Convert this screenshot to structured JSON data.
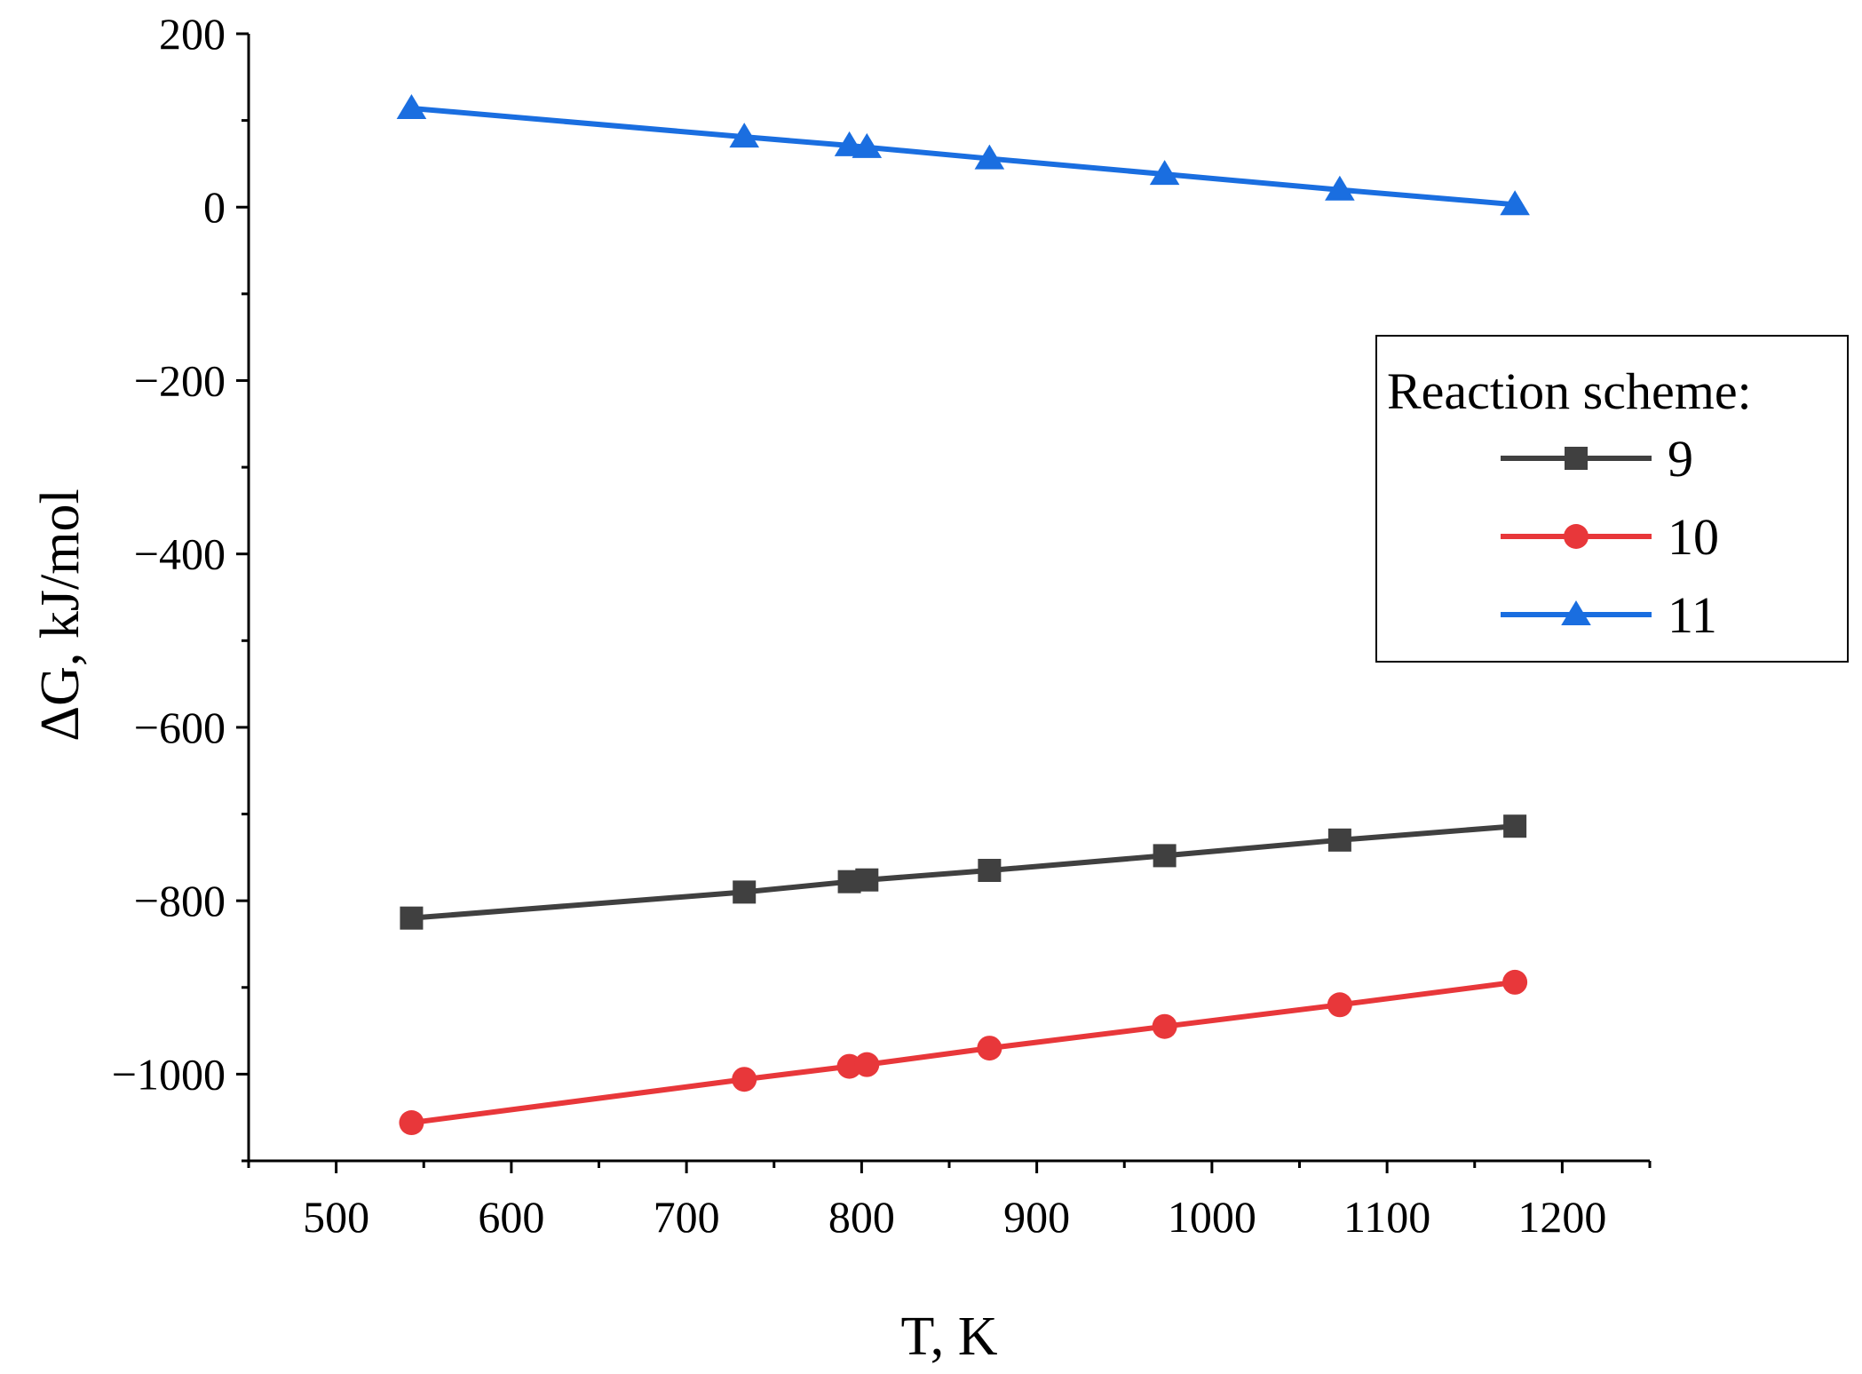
{
  "chart_data": {
    "type": "line",
    "title": "",
    "xlabel": "T, K",
    "ylabel": "ΔG, kJ/mol",
    "xlim": [
      450,
      1250
    ],
    "ylim": [
      -1100,
      200
    ],
    "x_ticks": [
      500,
      600,
      700,
      800,
      900,
      1000,
      1100,
      1200
    ],
    "x_tick_labels": [
      "500",
      "600",
      "700",
      "800",
      "900",
      "1000",
      "1100",
      "1200"
    ],
    "y_ticks": [
      200,
      0,
      -200,
      -400,
      -600,
      -800,
      -1000
    ],
    "y_tick_labels": [
      "200",
      "0",
      "−200",
      "−400",
      "−600",
      "−800",
      "−1000"
    ],
    "legend": {
      "title": "Reaction scheme:",
      "position": "right"
    },
    "series": [
      {
        "name": "9",
        "color": "#404040",
        "marker": "square",
        "points": [
          [
            543,
            -820
          ],
          [
            733,
            -790
          ],
          [
            793,
            -778
          ],
          [
            803,
            -776
          ],
          [
            873,
            -765
          ],
          [
            973,
            -748
          ],
          [
            1073,
            -730
          ],
          [
            1173,
            -714
          ]
        ]
      },
      {
        "name": "10",
        "color": "#e8373a",
        "marker": "circle",
        "points": [
          [
            543,
            -1056
          ],
          [
            733,
            -1006
          ],
          [
            793,
            -991
          ],
          [
            803,
            -989
          ],
          [
            873,
            -970
          ],
          [
            973,
            -945
          ],
          [
            1073,
            -920
          ],
          [
            1173,
            -894
          ]
        ]
      },
      {
        "name": "11",
        "color": "#1a6ee0",
        "marker": "triangle",
        "points": [
          [
            543,
            114
          ],
          [
            733,
            81
          ],
          [
            793,
            71
          ],
          [
            803,
            69
          ],
          [
            873,
            56
          ],
          [
            973,
            38
          ],
          [
            1073,
            20
          ],
          [
            1173,
            3
          ]
        ]
      }
    ]
  }
}
